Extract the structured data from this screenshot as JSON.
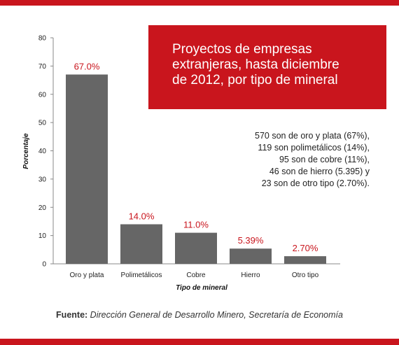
{
  "chart_data": {
    "type": "bar",
    "title": "Proyectos de empresas\nextranjeras, hasta diciembre\nde 2012, por tipo de mineral",
    "categories": [
      "Oro y plata",
      "Polimetálicos",
      "Cobre",
      "Hierro",
      "Otro tipo"
    ],
    "values": [
      67.0,
      14.0,
      11.0,
      5.39,
      2.7
    ],
    "data_labels": [
      "67.0%",
      "14.0%",
      "11.0%",
      "5.39%",
      "2.70%"
    ],
    "xlabel": "Tipo de mineral",
    "ylabel": "Porcentaje",
    "ylim": [
      0,
      80
    ],
    "yticks": [
      0,
      10,
      20,
      30,
      40,
      50,
      60,
      70,
      80
    ],
    "grid": false,
    "bar_color": "#666666",
    "label_color": "#c9151d"
  },
  "summary_lines": [
    "570 son de oro y plata (67%),",
    "119 son polimetálicos (14%),",
    "95 son de cobre (11%),",
    "46 son de hierro (5.395) y",
    "23 son de otro tipo (2.70%)."
  ],
  "source": {
    "label": "Fuente:",
    "text": "Dirección General de Desarrollo Minero, Secretaría de Economía"
  },
  "accent_color": "#c9151d"
}
